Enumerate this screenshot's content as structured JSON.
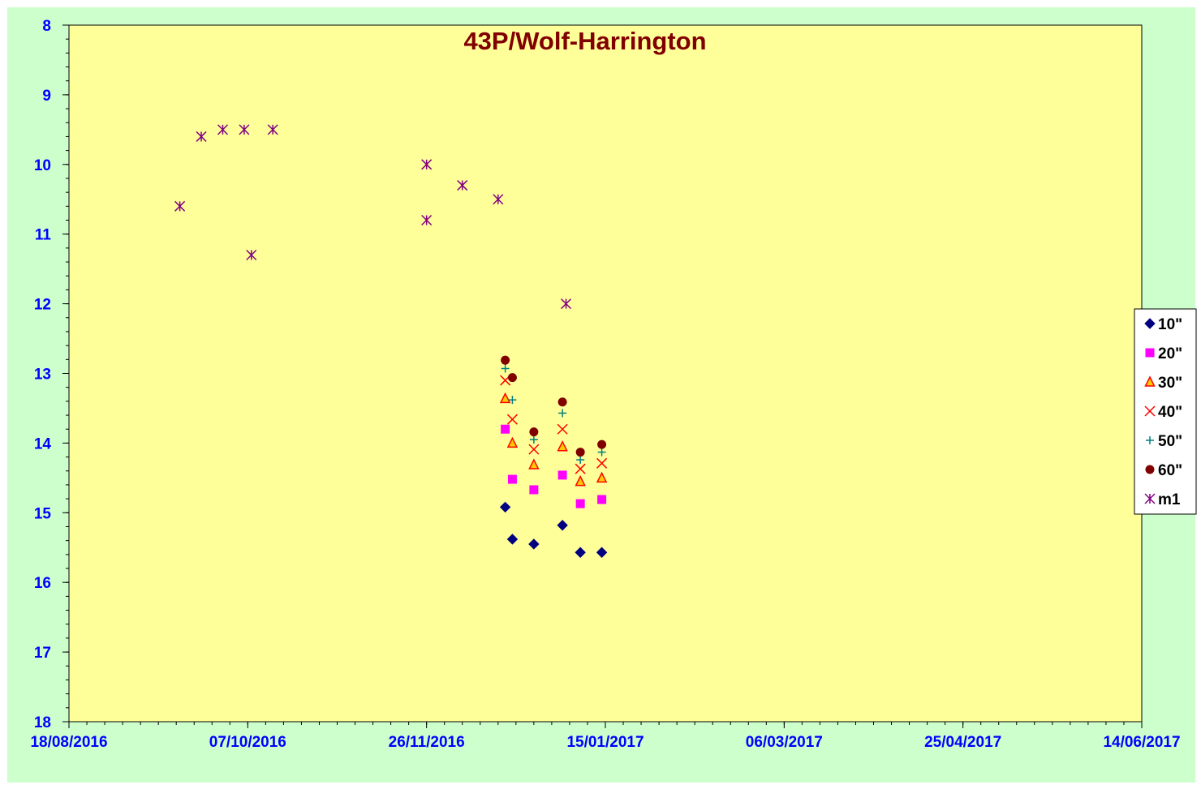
{
  "chart_data": {
    "type": "scatter",
    "title": "43P/Wolf-Harrington",
    "xlabel": "",
    "ylabel": "",
    "x_axis": {
      "kind": "date",
      "min": "2016-08-18",
      "max": "2017-06-14",
      "tick_labels": [
        "18/08/2016",
        "07/10/2016",
        "26/11/2016",
        "15/01/2017",
        "06/03/2017",
        "25/04/2017",
        "14/06/2017"
      ],
      "tick_dates": [
        "2016-08-18",
        "2016-10-07",
        "2016-11-26",
        "2017-01-15",
        "2017-03-06",
        "2017-04-25",
        "2017-06-14"
      ],
      "minor_tick_days": 5
    },
    "y_axis": {
      "min": 8,
      "max": 18,
      "reversed": true,
      "tick_labels": [
        "8",
        "9",
        "10",
        "11",
        "12",
        "13",
        "14",
        "15",
        "16",
        "17",
        "18"
      ],
      "tick_values": [
        8,
        9,
        10,
        11,
        12,
        13,
        14,
        15,
        16,
        17,
        18
      ],
      "minor_step": 0.2
    },
    "grid": false,
    "legend_position": "right",
    "colors": {
      "plot_background": "#ffff99",
      "chart_background": "#ccffcc",
      "axis_text": "#0000ff",
      "title": "#800000"
    },
    "series": [
      {
        "name": "10\"",
        "marker": "diamond",
        "color": "#000080",
        "points": [
          {
            "x": "2016-12-18",
            "y": 14.92
          },
          {
            "x": "2016-12-20",
            "y": 15.38
          },
          {
            "x": "2016-12-26",
            "y": 15.45
          },
          {
            "x": "2017-01-03",
            "y": 15.18
          },
          {
            "x": "2017-01-08",
            "y": 15.57
          },
          {
            "x": "2017-01-14",
            "y": 15.57
          }
        ]
      },
      {
        "name": "20\"",
        "marker": "square",
        "color": "#ff00ff",
        "points": [
          {
            "x": "2016-12-18",
            "y": 13.8
          },
          {
            "x": "2016-12-20",
            "y": 14.52
          },
          {
            "x": "2016-12-26",
            "y": 14.67
          },
          {
            "x": "2017-01-03",
            "y": 14.46
          },
          {
            "x": "2017-01-08",
            "y": 14.87
          },
          {
            "x": "2017-01-14",
            "y": 14.81
          }
        ]
      },
      {
        "name": "30\"",
        "marker": "triangle",
        "color": "#ff0000",
        "fill": "#ffcc00",
        "points": [
          {
            "x": "2016-12-18",
            "y": 13.36
          },
          {
            "x": "2016-12-20",
            "y": 14.0
          },
          {
            "x": "2016-12-26",
            "y": 14.31
          },
          {
            "x": "2017-01-03",
            "y": 14.05
          },
          {
            "x": "2017-01-08",
            "y": 14.55
          },
          {
            "x": "2017-01-14",
            "y": 14.5
          }
        ]
      },
      {
        "name": "40\"",
        "marker": "x",
        "color": "#ff0000",
        "points": [
          {
            "x": "2016-12-18",
            "y": 13.1
          },
          {
            "x": "2016-12-20",
            "y": 13.66
          },
          {
            "x": "2016-12-26",
            "y": 14.09
          },
          {
            "x": "2017-01-03",
            "y": 13.8
          },
          {
            "x": "2017-01-08",
            "y": 14.37
          },
          {
            "x": "2017-01-14",
            "y": 14.29
          }
        ]
      },
      {
        "name": "50\"",
        "marker": "plus",
        "color": "#008080",
        "points": [
          {
            "x": "2016-12-18",
            "y": 12.93
          },
          {
            "x": "2016-12-20",
            "y": 13.38
          },
          {
            "x": "2016-12-26",
            "y": 13.95
          },
          {
            "x": "2017-01-03",
            "y": 13.57
          },
          {
            "x": "2017-01-08",
            "y": 14.24
          },
          {
            "x": "2017-01-14",
            "y": 14.13
          }
        ]
      },
      {
        "name": "60\"",
        "marker": "circle",
        "color": "#800000",
        "points": [
          {
            "x": "2016-12-18",
            "y": 12.81
          },
          {
            "x": "2016-12-20",
            "y": 13.06
          },
          {
            "x": "2016-12-26",
            "y": 13.84
          },
          {
            "x": "2017-01-03",
            "y": 13.41
          },
          {
            "x": "2017-01-08",
            "y": 14.13
          },
          {
            "x": "2017-01-14",
            "y": 14.02
          }
        ]
      },
      {
        "name": "m1",
        "marker": "star",
        "color": "#800080",
        "points": [
          {
            "x": "2016-09-18",
            "y": 10.6
          },
          {
            "x": "2016-09-24",
            "y": 9.6
          },
          {
            "x": "2016-09-30",
            "y": 9.5
          },
          {
            "x": "2016-10-06",
            "y": 9.5
          },
          {
            "x": "2016-10-08",
            "y": 11.3
          },
          {
            "x": "2016-10-14",
            "y": 9.5
          },
          {
            "x": "2016-11-26",
            "y": 10.0
          },
          {
            "x": "2016-11-26",
            "y": 10.8
          },
          {
            "x": "2016-12-06",
            "y": 10.3
          },
          {
            "x": "2016-12-16",
            "y": 10.5
          },
          {
            "x": "2017-01-04",
            "y": 12.0
          }
        ]
      }
    ]
  }
}
